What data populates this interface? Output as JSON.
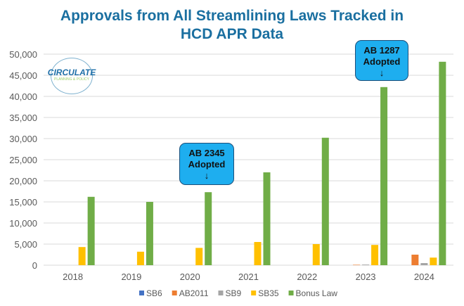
{
  "chart_data": {
    "type": "bar",
    "title_lines": [
      "Approvals from All Streamlining Laws Tracked in",
      "HCD APR Data"
    ],
    "categories": [
      "2018",
      "2019",
      "2020",
      "2021",
      "2022",
      "2023",
      "2024"
    ],
    "ylim": [
      0,
      50000
    ],
    "yticks": [
      0,
      5000,
      10000,
      15000,
      20000,
      25000,
      30000,
      35000,
      40000,
      45000,
      50000
    ],
    "ytick_labels": [
      "0",
      "5,000",
      "10,000",
      "15,000",
      "20,000",
      "25,000",
      "30,000",
      "35,000",
      "40,000",
      "45,000",
      "50,000"
    ],
    "grid": true,
    "legend_position": "bottom",
    "series": [
      {
        "name": "SB6",
        "color": "#4472c4",
        "values": [
          0,
          0,
          0,
          0,
          0,
          0,
          0
        ]
      },
      {
        "name": "AB2011",
        "color": "#ed7d31",
        "values": [
          0,
          0,
          0,
          0,
          0,
          100,
          2500
        ]
      },
      {
        "name": "SB9",
        "color": "#a5a5a5",
        "values": [
          0,
          0,
          0,
          0,
          0,
          150,
          500
        ]
      },
      {
        "name": "SB35",
        "color": "#ffc000",
        "values": [
          4300,
          3200,
          4100,
          5500,
          5000,
          4800,
          1800
        ]
      },
      {
        "name": "Bonus Law",
        "color": "#70ad47",
        "values": [
          16200,
          15000,
          17300,
          22000,
          30200,
          42200,
          48200
        ]
      }
    ],
    "annotations": [
      {
        "lines": [
          "AB 2345",
          "Adopted",
          "↓"
        ],
        "category": "2020"
      },
      {
        "lines": [
          "AB 1287",
          "Adopted",
          "↓"
        ],
        "category": "2023"
      }
    ]
  },
  "logo": {
    "name": "CIRCULATE",
    "tagline": "PLANNING & POLICY"
  }
}
